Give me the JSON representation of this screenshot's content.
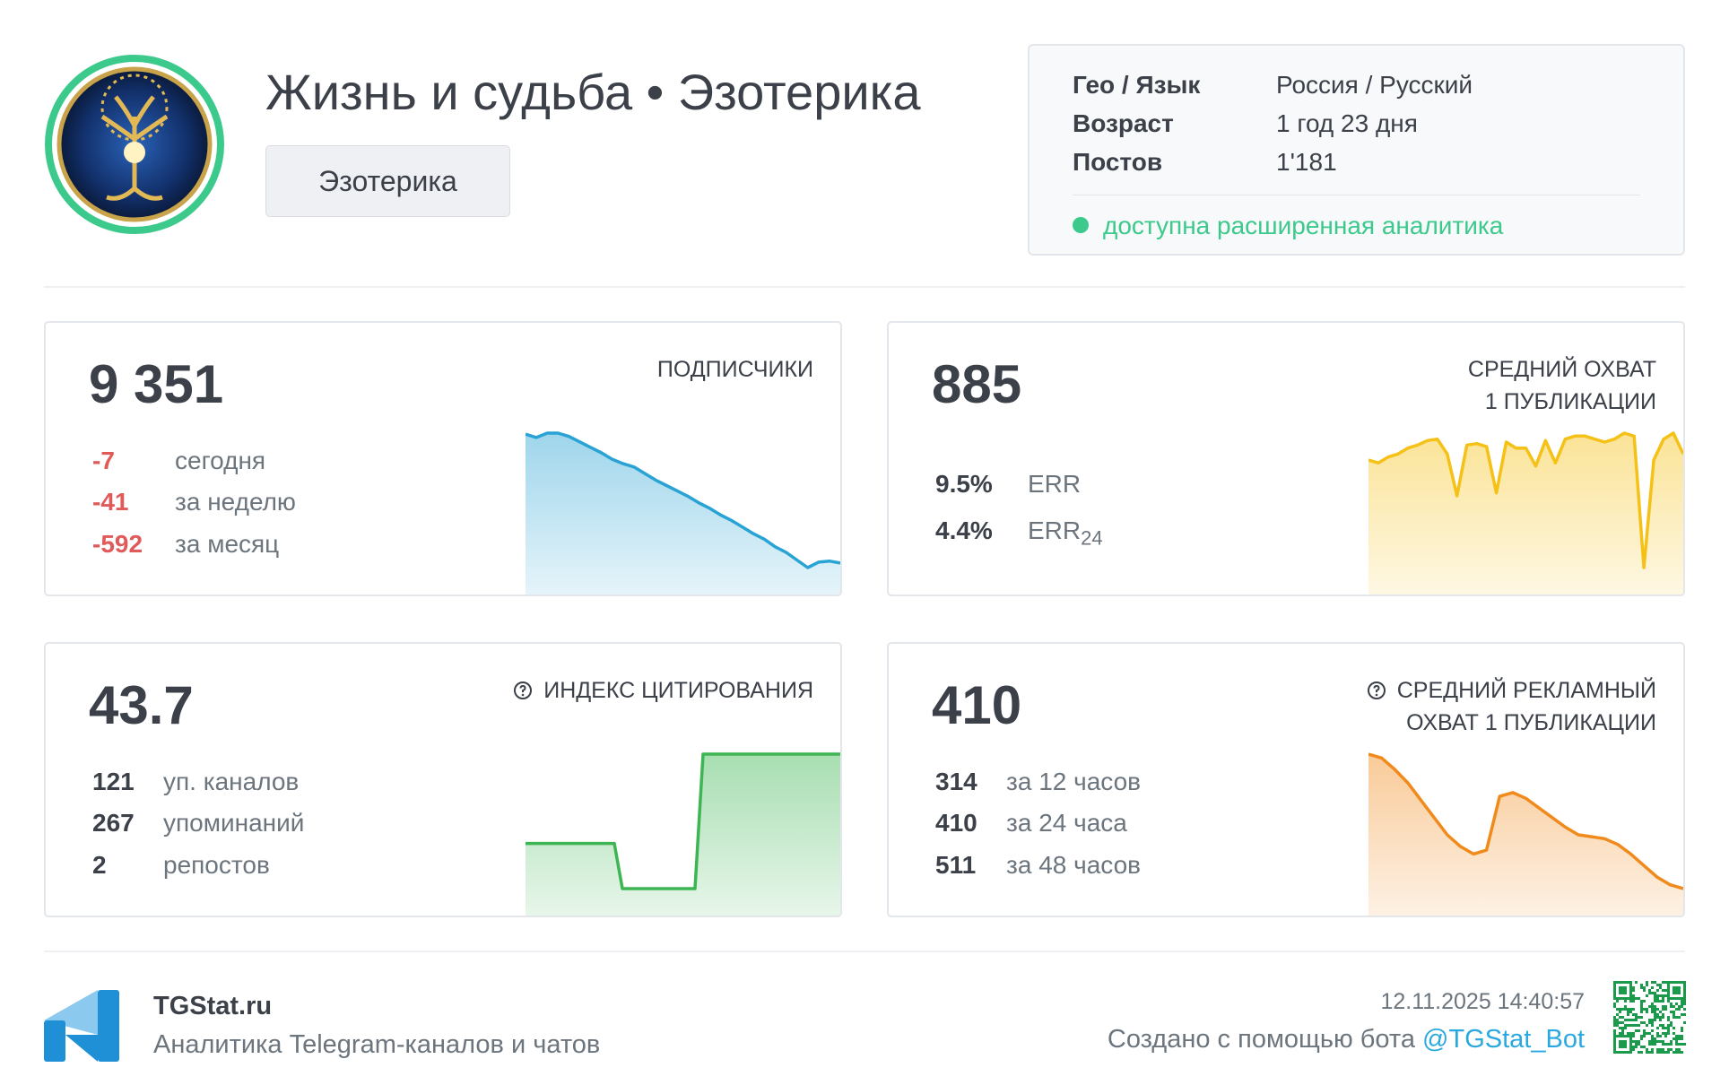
{
  "header": {
    "title": "Жизнь и судьба • Эзотерика",
    "tag": "Эзотерика"
  },
  "info": {
    "rows": [
      [
        "Гео / Язык",
        "Россия / Русский"
      ],
      [
        "Возраст",
        "1 год 23 дня"
      ],
      [
        "Постов",
        "1'181"
      ]
    ],
    "analytics": "доступна расширенная аналитика"
  },
  "cards": [
    {
      "value": "9 351",
      "title": [
        "ПОДПИСЧИКИ"
      ],
      "stats": [
        {
          "value": "-7",
          "label": "сегодня"
        },
        {
          "value": "-41",
          "label": "за неделю"
        },
        {
          "value": "-592",
          "label": "за месяц"
        }
      ],
      "value_color": "#e05a5a",
      "chart": {
        "type": "area",
        "color": "#29a3d4",
        "values": [
          9940,
          9925,
          9945,
          9945,
          9930,
          9905,
          9880,
          9855,
          9825,
          9805,
          9790,
          9760,
          9730,
          9705,
          9680,
          9655,
          9625,
          9600,
          9570,
          9545,
          9515,
          9485,
          9460,
          9425,
          9400,
          9365,
          9330,
          9355,
          9360,
          9351
        ]
      }
    },
    {
      "value": "885",
      "title": [
        "СРЕДНИЙ ОХВАТ",
        "1 ПУБЛИКАЦИИ"
      ],
      "stats": [
        {
          "value": "9.5%",
          "label": "ERR"
        },
        {
          "value": "4.4%",
          "label": "ERR",
          "sub": "24"
        }
      ],
      "chart": {
        "type": "area",
        "color": "#f5c116",
        "values": [
          880,
          870,
          890,
          900,
          920,
          930,
          945,
          950,
          900,
          760,
          930,
          935,
          925,
          770,
          940,
          920,
          920,
          860,
          945,
          870,
          950,
          960,
          960,
          950,
          940,
          950,
          970,
          960,
          520,
          880,
          950,
          970,
          900
        ]
      }
    },
    {
      "value": "43.7",
      "title": [
        "ИНДЕКС ЦИТИРОВАНИЯ"
      ],
      "help": true,
      "stats": [
        {
          "value": "121",
          "label": "уп. каналов"
        },
        {
          "value": "267",
          "label": "упоминаний"
        },
        {
          "value": "2",
          "label": "репостов"
        }
      ],
      "chart": {
        "type": "area",
        "color": "#3db552",
        "values": [
          20,
          20,
          20,
          20,
          20,
          20,
          20,
          20,
          20,
          20,
          20,
          20,
          8,
          8,
          8,
          8,
          8,
          8,
          8,
          8,
          8,
          8,
          43.7,
          43.7,
          43.7,
          43.7,
          43.7,
          43.7,
          43.7,
          43.7,
          43.7,
          43.7,
          43.7,
          43.7,
          43.7,
          43.7,
          43.7,
          43.7,
          43.7,
          43.7
        ]
      }
    },
    {
      "value": "410",
      "title": [
        "СРЕДНИЙ РЕКЛАМНЫЙ",
        "ОХВАТ 1 ПУБЛИКАЦИИ"
      ],
      "help": true,
      "stats": [
        {
          "value": "314",
          "label": "за 12 часов"
        },
        {
          "value": "410",
          "label": "за 24 часа"
        },
        {
          "value": "511",
          "label": "за 48 часов"
        }
      ],
      "chart": {
        "type": "area",
        "color": "#f18a1c",
        "values": [
          100,
          98,
          92,
          85,
          76,
          67,
          58,
          52,
          48,
          50,
          78,
          80,
          77,
          72,
          67,
          62,
          58,
          57,
          56,
          53,
          48,
          42,
          36,
          32,
          30
        ]
      }
    }
  ],
  "footer": {
    "name": "TGStat.ru",
    "subtitle": "Аналитика Telegram-каналов и чатов",
    "date": "12.11.2025 14:40:57",
    "made": "Создано с помощью бота",
    "bot": "@TGStat_Bot"
  }
}
